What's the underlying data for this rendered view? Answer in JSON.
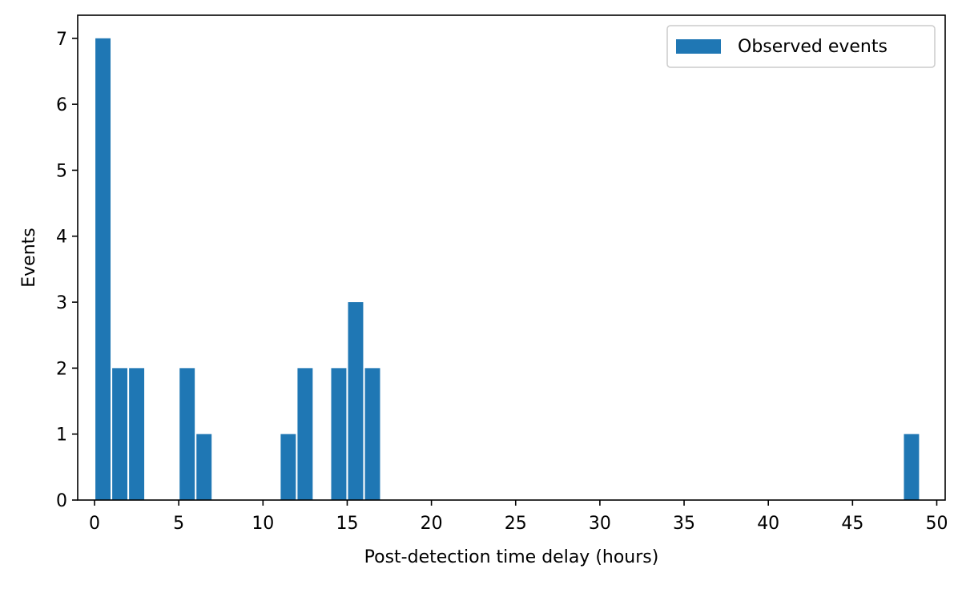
{
  "chart_data": {
    "type": "bar",
    "title": "",
    "xlabel": "Post-detection time delay (hours)",
    "ylabel": "Events",
    "xlim": [
      -1,
      50.5
    ],
    "ylim": [
      0,
      7.35
    ],
    "xticks": [
      0,
      5,
      10,
      15,
      20,
      25,
      30,
      35,
      40,
      45,
      50
    ],
    "yticks": [
      0,
      1,
      2,
      3,
      4,
      5,
      6,
      7
    ],
    "bin_width": 1,
    "grid": false,
    "legend_position": "top-right",
    "series": [
      {
        "name": "Observed events",
        "color": "#1f77b4",
        "bins": [
          {
            "start": 0,
            "value": 7
          },
          {
            "start": 1,
            "value": 2
          },
          {
            "start": 2,
            "value": 2
          },
          {
            "start": 5,
            "value": 2
          },
          {
            "start": 6,
            "value": 1
          },
          {
            "start": 11,
            "value": 1
          },
          {
            "start": 12,
            "value": 2
          },
          {
            "start": 14,
            "value": 2
          },
          {
            "start": 15,
            "value": 3
          },
          {
            "start": 16,
            "value": 2
          },
          {
            "start": 48,
            "value": 1
          }
        ]
      }
    ]
  }
}
